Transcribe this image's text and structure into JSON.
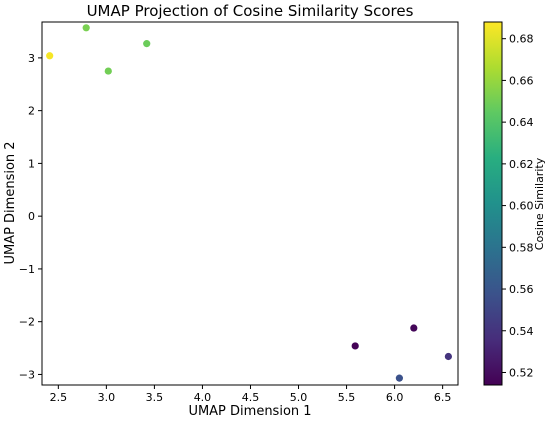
{
  "chart_data": {
    "type": "scatter",
    "title": "UMAP Projection of Cosine Similarity Scores",
    "xlabel": "UMAP Dimension 1",
    "ylabel": "UMAP Dimension 2",
    "xlim": [
      2.33,
      6.66
    ],
    "ylim": [
      -3.2,
      3.68
    ],
    "xticks": [
      2.5,
      3.0,
      3.5,
      4.0,
      4.5,
      5.0,
      5.5,
      6.0,
      6.5
    ],
    "xtick_labels": [
      "2.5",
      "3.0",
      "3.5",
      "4.0",
      "4.5",
      "5.0",
      "5.5",
      "6.0",
      "6.5"
    ],
    "yticks": [
      -3,
      -2,
      -1,
      0,
      1,
      2,
      3
    ],
    "ytick_labels": [
      "−3",
      "−2",
      "−1",
      "0",
      "1",
      "2",
      "3"
    ],
    "grid": false,
    "points": [
      {
        "x": 2.41,
        "y": 3.04,
        "color_value": 0.686
      },
      {
        "x": 2.79,
        "y": 3.57,
        "color_value": 0.652
      },
      {
        "x": 3.02,
        "y": 2.75,
        "color_value": 0.65
      },
      {
        "x": 3.42,
        "y": 3.27,
        "color_value": 0.648
      },
      {
        "x": 5.59,
        "y": -2.46,
        "color_value": 0.515
      },
      {
        "x": 6.2,
        "y": -2.12,
        "color_value": 0.517
      },
      {
        "x": 6.05,
        "y": -3.07,
        "color_value": 0.557
      },
      {
        "x": 6.56,
        "y": -2.66,
        "color_value": 0.54
      }
    ],
    "colorbar": {
      "label": "Cosine Similarity",
      "colormap": "viridis",
      "range": [
        0.514,
        0.688
      ],
      "ticks": [
        0.52,
        0.54,
        0.56,
        0.58,
        0.6,
        0.62,
        0.64,
        0.66,
        0.68
      ],
      "tick_labels": [
        "0.52",
        "0.54",
        "0.56",
        "0.58",
        "0.60",
        "0.62",
        "0.64",
        "0.66",
        "0.68"
      ]
    }
  }
}
